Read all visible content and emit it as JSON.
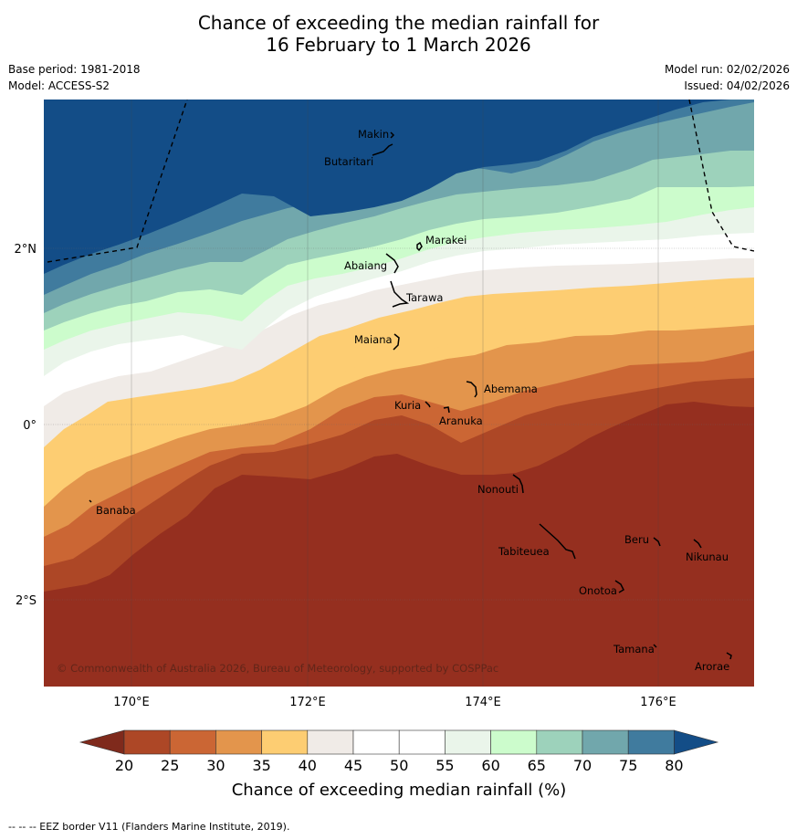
{
  "title": {
    "line1": "Chance of exceeding the median rainfall for",
    "line2": "16 February to 1 March 2026"
  },
  "meta_left": {
    "base_period": "Base period: 1981-2018",
    "model": "Model: ACCESS-S2"
  },
  "meta_right": {
    "model_run": "Model run: 02/02/2026",
    "issued": "Issued: 04/02/2026"
  },
  "map": {
    "copyright": "© Commonwealth of Australia 2026, Bureau of Meteorology, supported by COSPPac",
    "lat_labels": [
      "2°N",
      "0°",
      "2°S"
    ],
    "lon_labels": [
      "170°E",
      "172°E",
      "174°E",
      "176°E"
    ],
    "places": [
      "Makin",
      "Butaritari",
      "Marakei",
      "Abaiang",
      "Tarawa",
      "Maiana",
      "Abemama",
      "Kuria",
      "Aranuka",
      "Nonouti",
      "Banaba",
      "Beru",
      "Nikunau",
      "Tabiteuea",
      "Onotoa",
      "Tamana",
      "Arorae"
    ]
  },
  "legend": {
    "title": "Chance of exceeding median rainfall (%)",
    "ticks": [
      "20",
      "25",
      "30",
      "35",
      "40",
      "45",
      "50",
      "55",
      "60",
      "65",
      "70",
      "75",
      "80"
    ],
    "colors": [
      "#7f2a1c",
      "#ad4726",
      "#cb6634",
      "#e3954c",
      "#fdcd72",
      "#f0ebe7",
      "#ffffff",
      "#ffffff",
      "#eaf5ea",
      "#ccfccc",
      "#9dd2bb",
      "#71a7ac",
      "#407b9e",
      "#134d87"
    ]
  },
  "footer": "--  --  -- EEZ border V11 (Flanders Marine Institute, 2019)."
}
